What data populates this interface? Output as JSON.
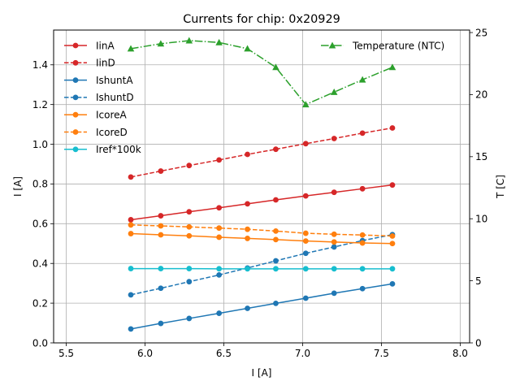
{
  "chart_data": {
    "type": "line",
    "title": "Currents for chip: 0x20929",
    "xlabel": "I [A]",
    "ylabel": "I [A]",
    "y2label": "T [C]",
    "xlim": [
      5.42,
      8.06
    ],
    "ylim": [
      0.0,
      1.575
    ],
    "y2lim": [
      0.0,
      25.2
    ],
    "xticks": [
      5.5,
      6.0,
      6.5,
      7.0,
      7.5,
      8.0
    ],
    "xtick_labels": [
      "5.5",
      "6.0",
      "6.5",
      "7.0",
      "7.5",
      "8.0"
    ],
    "yticks": [
      0.0,
      0.2,
      0.4,
      0.6,
      0.8,
      1.0,
      1.2,
      1.4
    ],
    "ytick_labels": [
      "0.0",
      "0.2",
      "0.4",
      "0.6",
      "0.8",
      "1.0",
      "1.2",
      "1.4"
    ],
    "y2ticks": [
      0,
      5,
      10,
      15,
      20,
      25
    ],
    "y2tick_labels": [
      "0",
      "5",
      "10",
      "15",
      "20",
      "25"
    ],
    "grid": true,
    "legend_left_placement": "top-left",
    "legend_right_placement": "top-right",
    "x": [
      5.91,
      6.1,
      6.28,
      6.47,
      6.65,
      6.83,
      7.02,
      7.2,
      7.38,
      7.57
    ],
    "series": [
      {
        "name": "IinA",
        "axis": "left",
        "color": "#d62728",
        "dash": "solid",
        "marker": "circle",
        "values": [
          0.62,
          0.64,
          0.66,
          0.68,
          0.7,
          0.72,
          0.74,
          0.758,
          0.776,
          0.795
        ]
      },
      {
        "name": "IinD",
        "axis": "left",
        "color": "#d62728",
        "dash": "dashed",
        "marker": "circle",
        "values": [
          0.835,
          0.865,
          0.893,
          0.921,
          0.949,
          0.975,
          1.003,
          1.029,
          1.056,
          1.082
        ]
      },
      {
        "name": "IshuntA",
        "axis": "left",
        "color": "#1f77b4",
        "dash": "solid",
        "marker": "circle",
        "values": [
          0.07,
          0.098,
          0.123,
          0.149,
          0.174,
          0.199,
          0.225,
          0.25,
          0.273,
          0.297
        ]
      },
      {
        "name": "IshuntD",
        "axis": "left",
        "color": "#1f77b4",
        "dash": "dashed",
        "marker": "circle",
        "values": [
          0.242,
          0.275,
          0.308,
          0.342,
          0.377,
          0.413,
          0.451,
          0.483,
          0.515,
          0.545
        ]
      },
      {
        "name": "IcoreA",
        "axis": "left",
        "color": "#ff7f0e",
        "dash": "solid",
        "marker": "circle",
        "values": [
          0.55,
          0.544,
          0.539,
          0.532,
          0.526,
          0.52,
          0.513,
          0.508,
          0.503,
          0.5
        ]
      },
      {
        "name": "IcoreD",
        "axis": "left",
        "color": "#ff7f0e",
        "dash": "dashed",
        "marker": "circle",
        "values": [
          0.594,
          0.589,
          0.584,
          0.578,
          0.572,
          0.563,
          0.552,
          0.547,
          0.543,
          0.538
        ]
      },
      {
        "name": "Iref*100k",
        "axis": "left",
        "color": "#17becf",
        "dash": "solid",
        "marker": "circle",
        "values": [
          0.374,
          0.374,
          0.374,
          0.373,
          0.373,
          0.373,
          0.373,
          0.373,
          0.373,
          0.373
        ]
      },
      {
        "name": "Temperature (NTC)",
        "axis": "right",
        "color": "#2ca02c",
        "dash": "dashdot",
        "marker": "triangle",
        "values": [
          23.7,
          24.1,
          24.35,
          24.2,
          23.7,
          22.2,
          19.2,
          20.2,
          21.2,
          22.2
        ]
      }
    ]
  }
}
